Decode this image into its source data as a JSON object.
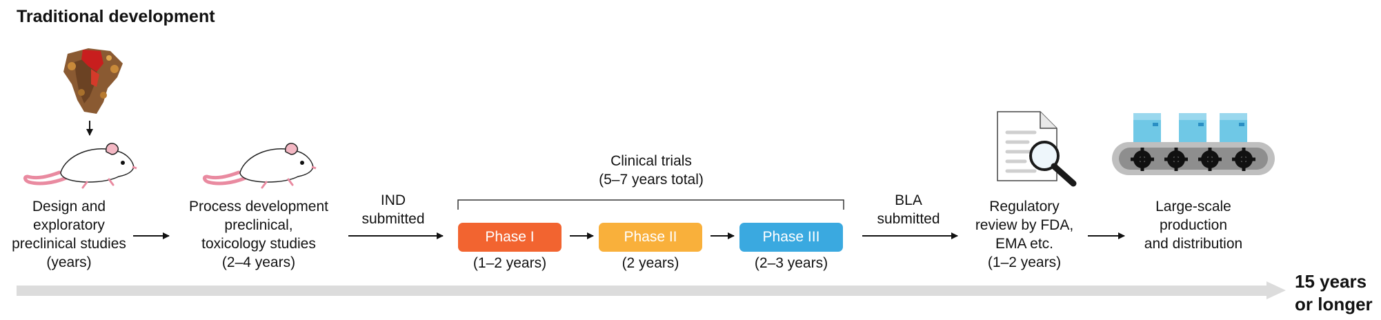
{
  "title": "Traditional development",
  "steps": [
    {
      "lines": [
        "Design and",
        "exploratory",
        "preclinical studies",
        "(years)"
      ]
    },
    {
      "lines": [
        "Process development",
        "preclinical,",
        "toxicology studies",
        "(2–4 years)"
      ]
    }
  ],
  "ind": {
    "lines": [
      "IND",
      "submitted"
    ]
  },
  "clinical": {
    "lines": [
      "Clinical trials",
      "(5–7 years total)"
    ]
  },
  "phases": [
    {
      "label": "Phase I",
      "duration": "(1–2 years)",
      "color": "#f26430"
    },
    {
      "label": "Phase II",
      "duration": "(2 years)",
      "color": "#f9b03b"
    },
    {
      "label": "Phase III",
      "duration": "(2–3 years)",
      "color": "#3aa9e0"
    }
  ],
  "bla": {
    "lines": [
      "BLA",
      "submitted"
    ]
  },
  "review": {
    "lines": [
      "Regulatory",
      "review by FDA,",
      "EMA etc.",
      "(1–2 years)"
    ]
  },
  "production": {
    "lines": [
      "Large-scale",
      "production",
      "and distribution"
    ]
  },
  "total": {
    "lines": [
      "15 years",
      "or longer"
    ]
  },
  "icons": [
    "protein-structure-icon",
    "mouse-icon",
    "document-magnifier-icon",
    "conveyor-belt-icon"
  ]
}
